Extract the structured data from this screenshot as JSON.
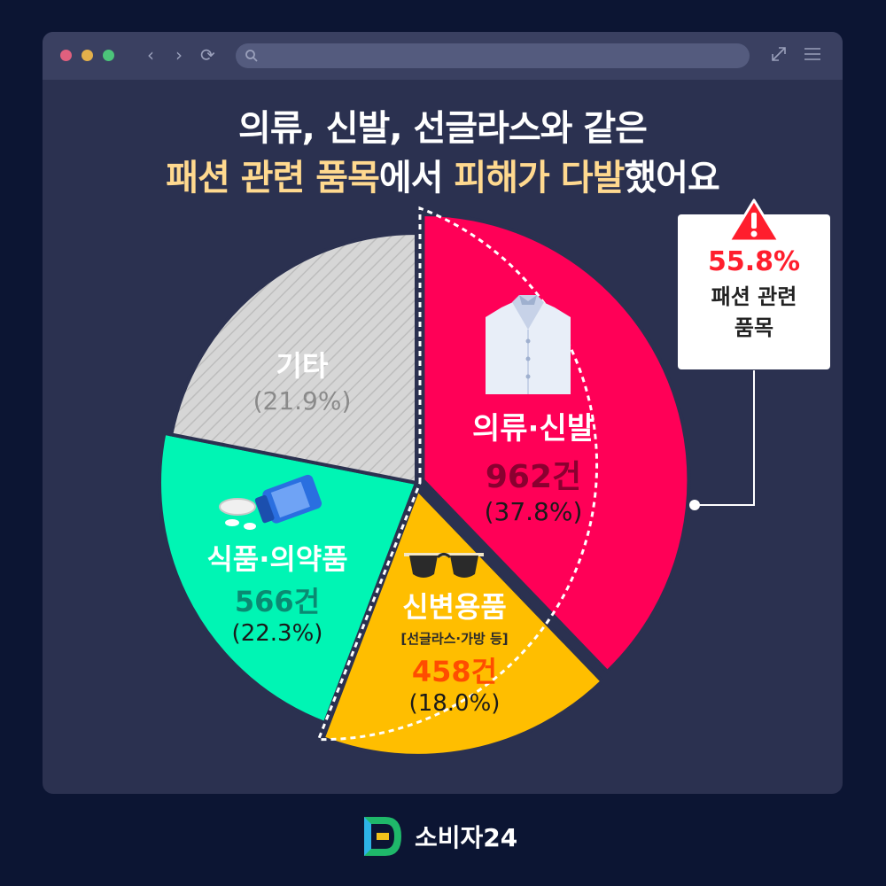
{
  "headline": {
    "line1": "의류, 신발, 선글라스와 같은",
    "line2_hl1": "패션 관련 품목",
    "line2_t1": "에서 ",
    "line2_hl2": "피해가 다발",
    "line2_t2": "했어요"
  },
  "callout": {
    "percent": "55.8%",
    "label_line1": "패션 관련",
    "label_line2": "품목"
  },
  "logo": {
    "text": "소비자24"
  },
  "colors": {
    "clothing": "#ff0057",
    "accessories": "#ffbe00",
    "food": "#00f5b4",
    "other": "#d6d6d6",
    "background": "#0c1533",
    "window": "#2b3150"
  },
  "icons": [
    "shirt-icon",
    "sunglasses-icon",
    "medicine-bottle-icon",
    "warning-icon"
  ],
  "chart_data": {
    "type": "pie",
    "title": "",
    "slices": [
      {
        "label": "의류·신발",
        "count": "962건",
        "value": 37.8,
        "pct_label": "(37.8%)",
        "color": "#ff0057"
      },
      {
        "label": "신변용품",
        "sublabel": "[선글라스·가방 등]",
        "count": "458건",
        "value": 18.0,
        "pct_label": "(18.0%)",
        "color": "#ffbe00"
      },
      {
        "label": "식품·의약품",
        "count": "566건",
        "value": 22.3,
        "pct_label": "(22.3%)",
        "color": "#00f5b4"
      },
      {
        "label": "기타",
        "value": 21.9,
        "pct_label": "(21.9%)",
        "color": "#d6d6d6"
      }
    ]
  }
}
